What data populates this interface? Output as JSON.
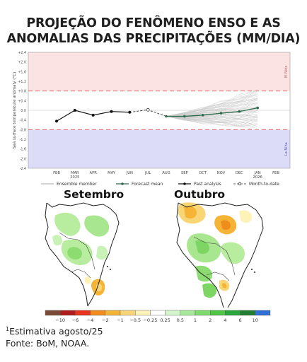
{
  "title_lines": [
    "PROJEÇÃO DO FENÔMENO ENSO E AS",
    "ANOMALIAS DAS PRECIPITAÇÕES (MM/DIA)"
  ],
  "chart_data": [
    {
      "type": "line",
      "ylabel": "Sea surface temperature anomaly (°C)",
      "ylim": [
        -2.4,
        2.4
      ],
      "yticks": [
        "+2.4",
        "+2.0",
        "+1.6",
        "+1.2",
        "+0.8",
        "+0.4",
        "0.0",
        "-0.4",
        "-0.8",
        "-1.2",
        "-1.6",
        "-2.0",
        "-2.4"
      ],
      "ytick_values": [
        2.4,
        2.0,
        1.6,
        1.2,
        0.8,
        0.4,
        0.0,
        -0.4,
        -0.8,
        -1.2,
        -1.6,
        -2.0,
        -2.4
      ],
      "xticks": [
        "FEB",
        "MAR",
        "APR",
        "MAY",
        "JUN",
        "JUL",
        "AUG",
        "SEP",
        "OCT",
        "NOV",
        "DEC",
        "JAN",
        "FEB"
      ],
      "xtick_years": [
        "",
        "2025",
        "",
        "",
        "",
        "",
        "",
        "",
        "",
        "",
        "",
        "2026",
        ""
      ],
      "el_nino_threshold": 0.8,
      "la_nina_threshold": -0.8,
      "zone_labels": {
        "upper": "El Niño",
        "lower": "La Niña"
      },
      "colors": {
        "upper_zone": "#fbe3e3",
        "lower_zone": "#dcdcf8",
        "past": "#111111",
        "forecast": "#2e6b4f",
        "ensemble": "#c8c8c8"
      },
      "series": [
        {
          "name": "Past analysis",
          "x": [
            "FEB",
            "MAR",
            "APR",
            "MAY",
            "JUN"
          ],
          "y": [
            -0.45,
            0.0,
            -0.2,
            -0.05,
            -0.08
          ]
        },
        {
          "name": "Month-to-date",
          "x": [
            "JUN",
            "JUL",
            "AUG"
          ],
          "y": [
            -0.08,
            0.02,
            -0.25
          ]
        },
        {
          "name": "Forecast mean",
          "x": [
            "AUG",
            "SEP",
            "OCT",
            "NOV",
            "DEC",
            "JAN"
          ],
          "y": [
            -0.25,
            -0.25,
            -0.2,
            -0.12,
            -0.05,
            0.1
          ]
        }
      ],
      "legend": [
        "Ensemble member",
        "Forecast mean",
        "Past analysis",
        "Month-to-date"
      ],
      "legend_position": "bottom"
    }
  ],
  "maps": [
    {
      "title": "Setembro"
    },
    {
      "title": "Outubro"
    }
  ],
  "colorbar": {
    "labels": [
      "−10",
      "−6",
      "−4",
      "−2",
      "−1",
      "−0.5",
      "−0.25",
      "0.25",
      "0.5",
      "1",
      "2",
      "4",
      "6",
      "10"
    ],
    "colors": [
      "#7a4a36",
      "#b01c1c",
      "#e8341c",
      "#f28c1c",
      "#f5b436",
      "#f8d676",
      "#fdf2b8",
      "#ffffff",
      "#d6f5cc",
      "#a8e89a",
      "#7ddc6c",
      "#4fc745",
      "#27a83a",
      "#1f7f2f",
      "#2f6fd6"
    ]
  },
  "footnote": {
    "sup": "1",
    "text": "Estimativa agosto/25",
    "source": "Fonte: BoM, NOAA."
  }
}
